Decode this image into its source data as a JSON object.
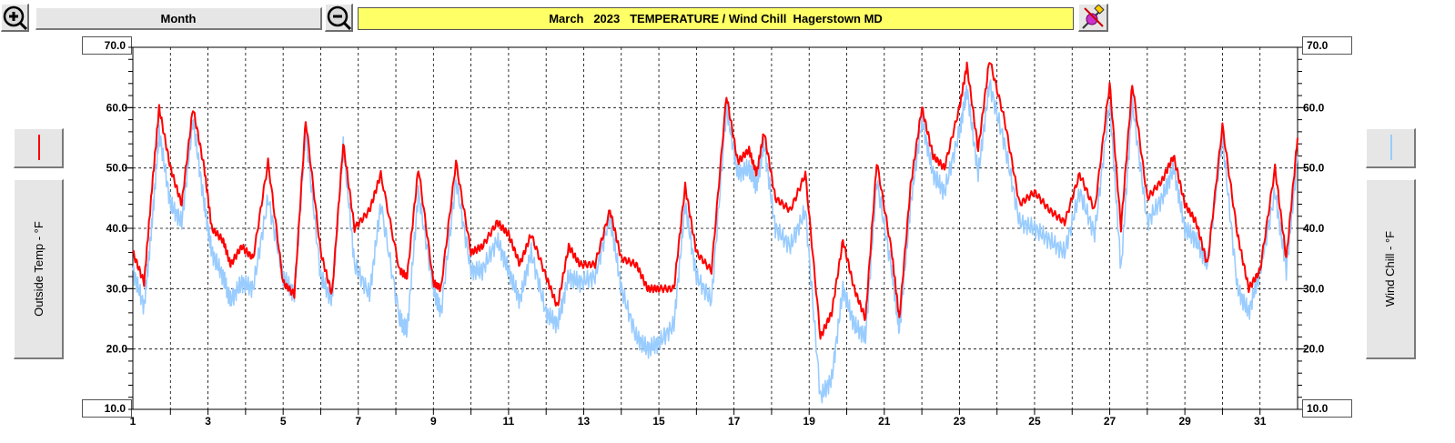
{
  "toolbar": {
    "zoom_in_icon": "zoom-in-icon",
    "zoom_out_icon": "zoom-out-icon",
    "period_label": "Month",
    "title": "March   2023   TEMPERATURE / Wind Chill  Hagerstown MD",
    "paint_icon": "paint-brush-icon"
  },
  "left_axis": {
    "top_label": "70.0",
    "bottom_label": "10.0",
    "title": "Outside Temp - °F",
    "color": "#ff0000"
  },
  "right_axis": {
    "top_label": "70.0",
    "bottom_label": "10.0",
    "title": "Wind Chill - °F",
    "color": "#99ccff"
  },
  "chart_data": {
    "type": "line",
    "title": "March   2023   TEMPERATURE / Wind Chill  Hagerstown MD",
    "ylim": [
      10,
      70
    ],
    "xlim": [
      1,
      32
    ],
    "grid": true,
    "y_ticks": [
      "60.0",
      "50.0",
      "40.0",
      "30.0",
      "20.0"
    ],
    "x_ticks": [
      "1",
      "3",
      "5",
      "7",
      "9",
      "11",
      "13",
      "15",
      "17",
      "19",
      "21",
      "23",
      "25",
      "27",
      "29",
      "31"
    ],
    "series": [
      {
        "name": "Outside Temp - °F",
        "color": "#ff0000",
        "points": [
          [
            1,
            36
          ],
          [
            1.3,
            31
          ],
          [
            1.5,
            46
          ],
          [
            1.7,
            60
          ],
          [
            2.0,
            50
          ],
          [
            2.3,
            44
          ],
          [
            2.6,
            60
          ],
          [
            2.9,
            50
          ],
          [
            3.1,
            40
          ],
          [
            3.4,
            38
          ],
          [
            3.6,
            34
          ],
          [
            3.9,
            37
          ],
          [
            4.2,
            35
          ],
          [
            4.6,
            51
          ],
          [
            5.0,
            31
          ],
          [
            5.3,
            29
          ],
          [
            5.6,
            58
          ],
          [
            6.0,
            36
          ],
          [
            6.3,
            29
          ],
          [
            6.6,
            54
          ],
          [
            6.9,
            40
          ],
          [
            7.3,
            43
          ],
          [
            7.6,
            49
          ],
          [
            8.1,
            33
          ],
          [
            8.3,
            32
          ],
          [
            8.6,
            50
          ],
          [
            9.0,
            31
          ],
          [
            9.2,
            30
          ],
          [
            9.6,
            51
          ],
          [
            10.0,
            36
          ],
          [
            10.3,
            37
          ],
          [
            10.7,
            41
          ],
          [
            11.0,
            39
          ],
          [
            11.3,
            34
          ],
          [
            11.6,
            39
          ],
          [
            12.0,
            32
          ],
          [
            12.3,
            27
          ],
          [
            12.6,
            37
          ],
          [
            12.9,
            34
          ],
          [
            13.3,
            34
          ],
          [
            13.7,
            43
          ],
          [
            14.0,
            35
          ],
          [
            14.4,
            34
          ],
          [
            14.7,
            30
          ],
          [
            15.0,
            30
          ],
          [
            15.4,
            30
          ],
          [
            15.7,
            47
          ],
          [
            16.0,
            36
          ],
          [
            16.4,
            33
          ],
          [
            16.8,
            62
          ],
          [
            17.1,
            51
          ],
          [
            17.4,
            53
          ],
          [
            17.6,
            49
          ],
          [
            17.8,
            56
          ],
          [
            18.1,
            45
          ],
          [
            18.5,
            43
          ],
          [
            18.9,
            49
          ],
          [
            19.3,
            22
          ],
          [
            19.6,
            26
          ],
          [
            19.9,
            38
          ],
          [
            20.2,
            30
          ],
          [
            20.5,
            25
          ],
          [
            20.8,
            51
          ],
          [
            21.2,
            36
          ],
          [
            21.4,
            25
          ],
          [
            21.7,
            47
          ],
          [
            22.0,
            60
          ],
          [
            22.3,
            52
          ],
          [
            22.6,
            50
          ],
          [
            23.0,
            60
          ],
          [
            23.2,
            67
          ],
          [
            23.5,
            53
          ],
          [
            23.8,
            68
          ],
          [
            24.2,
            58
          ],
          [
            24.6,
            44
          ],
          [
            25.0,
            46
          ],
          [
            25.4,
            43
          ],
          [
            25.8,
            41
          ],
          [
            26.2,
            49
          ],
          [
            26.6,
            43
          ],
          [
            27.0,
            64
          ],
          [
            27.3,
            40
          ],
          [
            27.6,
            64
          ],
          [
            28.0,
            45
          ],
          [
            28.4,
            48
          ],
          [
            28.7,
            52
          ],
          [
            29.0,
            44
          ],
          [
            29.3,
            41
          ],
          [
            29.6,
            34
          ],
          [
            30.0,
            57
          ],
          [
            30.4,
            39
          ],
          [
            30.7,
            30
          ],
          [
            31.0,
            33
          ],
          [
            31.4,
            50
          ],
          [
            31.7,
            35
          ],
          [
            32,
            55
          ]
        ]
      },
      {
        "name": "Wind Chill - °F",
        "color": "#99ccff",
        "points": [
          [
            1,
            33
          ],
          [
            1.3,
            27
          ],
          [
            1.5,
            40
          ],
          [
            1.7,
            56
          ],
          [
            2.0,
            44
          ],
          [
            2.3,
            41
          ],
          [
            2.6,
            58
          ],
          [
            2.9,
            44
          ],
          [
            3.1,
            36
          ],
          [
            3.4,
            32
          ],
          [
            3.6,
            28
          ],
          [
            3.9,
            31
          ],
          [
            4.2,
            30
          ],
          [
            4.6,
            45
          ],
          [
            5.0,
            32
          ],
          [
            5.3,
            29
          ],
          [
            5.6,
            56
          ],
          [
            6.0,
            32
          ],
          [
            6.3,
            28
          ],
          [
            6.6,
            54
          ],
          [
            6.9,
            34
          ],
          [
            7.3,
            29
          ],
          [
            7.6,
            44
          ],
          [
            8.1,
            25
          ],
          [
            8.3,
            23
          ],
          [
            8.6,
            46
          ],
          [
            9.0,
            30
          ],
          [
            9.2,
            26
          ],
          [
            9.6,
            48
          ],
          [
            10.0,
            33
          ],
          [
            10.3,
            33
          ],
          [
            10.7,
            38
          ],
          [
            11.0,
            33
          ],
          [
            11.3,
            28
          ],
          [
            11.6,
            36
          ],
          [
            12.0,
            26
          ],
          [
            12.3,
            24
          ],
          [
            12.6,
            32
          ],
          [
            12.9,
            31
          ],
          [
            13.3,
            32
          ],
          [
            13.7,
            42
          ],
          [
            14.0,
            30
          ],
          [
            14.4,
            22
          ],
          [
            14.7,
            20
          ],
          [
            15.0,
            21
          ],
          [
            15.4,
            24
          ],
          [
            15.7,
            44
          ],
          [
            16.0,
            32
          ],
          [
            16.4,
            28
          ],
          [
            16.8,
            60
          ],
          [
            17.1,
            49
          ],
          [
            17.4,
            50
          ],
          [
            17.6,
            47
          ],
          [
            17.8,
            54
          ],
          [
            18.1,
            40
          ],
          [
            18.5,
            37
          ],
          [
            18.9,
            43
          ],
          [
            19.3,
            12
          ],
          [
            19.6,
            15
          ],
          [
            19.9,
            30
          ],
          [
            20.2,
            24
          ],
          [
            20.5,
            22
          ],
          [
            20.8,
            48
          ],
          [
            21.2,
            33
          ],
          [
            21.4,
            23
          ],
          [
            21.7,
            44
          ],
          [
            22.0,
            58
          ],
          [
            22.3,
            49
          ],
          [
            22.6,
            46
          ],
          [
            23.0,
            56
          ],
          [
            23.2,
            63
          ],
          [
            23.5,
            49
          ],
          [
            23.8,
            64
          ],
          [
            24.2,
            54
          ],
          [
            24.6,
            41
          ],
          [
            25.0,
            40
          ],
          [
            25.4,
            38
          ],
          [
            25.8,
            36
          ],
          [
            26.2,
            46
          ],
          [
            26.6,
            39
          ],
          [
            27.0,
            61
          ],
          [
            27.3,
            33
          ],
          [
            27.6,
            61
          ],
          [
            28.0,
            41
          ],
          [
            28.4,
            45
          ],
          [
            28.7,
            50
          ],
          [
            29.0,
            40
          ],
          [
            29.3,
            38
          ],
          [
            29.6,
            34
          ],
          [
            30.0,
            55
          ],
          [
            30.4,
            30
          ],
          [
            30.7,
            26
          ],
          [
            31.0,
            33
          ],
          [
            31.4,
            46
          ],
          [
            31.7,
            33
          ],
          [
            32,
            52
          ]
        ]
      }
    ]
  }
}
